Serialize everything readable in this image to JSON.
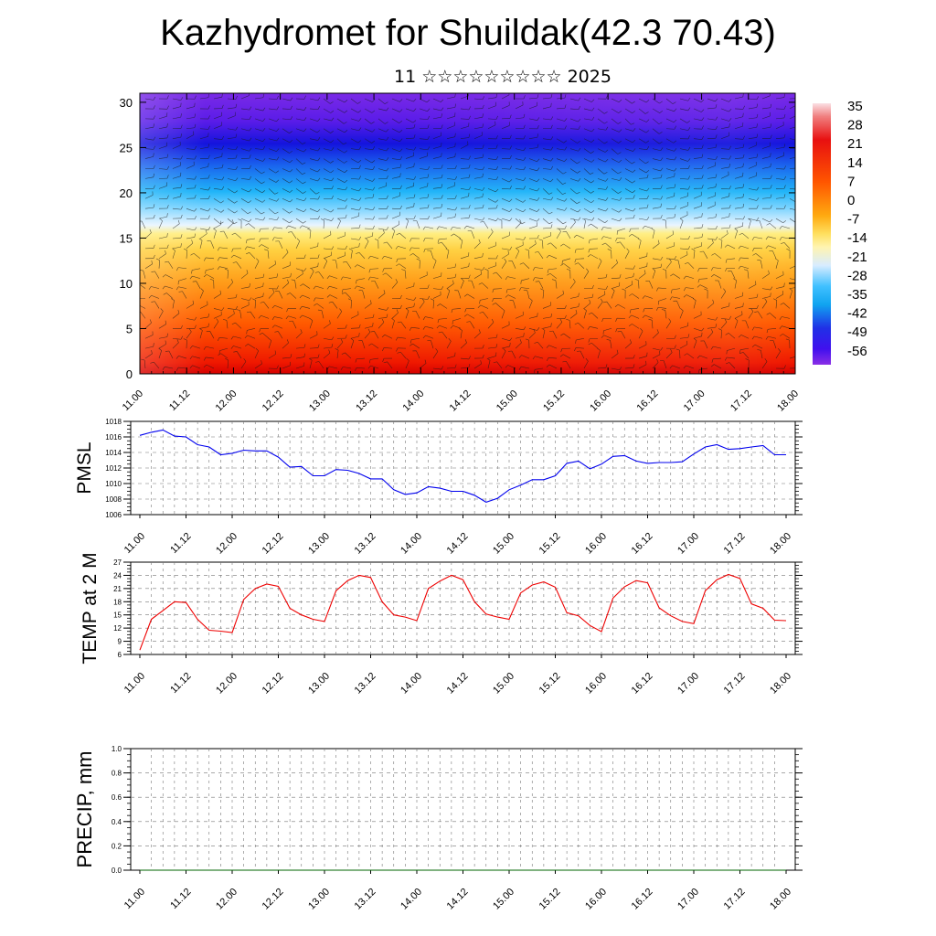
{
  "title": "Kazhydromet for Shuildak(42.3 70.43)",
  "subtitle": "11 ☆☆☆☆☆☆☆☆☆ 2025",
  "chart_data": [
    {
      "type": "heatmap",
      "ylim": [
        0,
        31
      ],
      "yticks": [
        0,
        5,
        10,
        15,
        20,
        25,
        30
      ],
      "xticks": [
        "11.00",
        "11.12",
        "12.00",
        "12.12",
        "13.00",
        "13.12",
        "14.00",
        "14.12",
        "15.00",
        "15.12",
        "16.00",
        "16.12",
        "17.00",
        "17.12",
        "18.00"
      ],
      "colorbar": {
        "labels": [
          "35",
          "28",
          "21",
          "14",
          "7",
          "0",
          "-7",
          "-14",
          "-21",
          "-28",
          "-35",
          "-42",
          "-49",
          "-56"
        ],
        "range": [
          -63,
          42
        ]
      }
    },
    {
      "type": "line",
      "ylabel": "PMSL",
      "ylim": [
        1006,
        1018
      ],
      "yticks": [
        1006,
        1008,
        1010,
        1012,
        1014,
        1016,
        1018
      ],
      "xticks": [
        "11.00",
        "11.12",
        "12.00",
        "12.12",
        "13.00",
        "13.12",
        "14.00",
        "14.12",
        "15.00",
        "15.12",
        "16.00",
        "16.12",
        "17.00",
        "17.12",
        "18.00"
      ],
      "color": "#0000ee",
      "values": [
        1016.2,
        1016.6,
        1016.9,
        1016.1,
        1016.0,
        1015.0,
        1014.7,
        1013.7,
        1013.9,
        1014.3,
        1014.2,
        1014.2,
        1013.4,
        1012.1,
        1012.2,
        1011.0,
        1011.0,
        1011.8,
        1011.7,
        1011.3,
        1010.6,
        1010.6,
        1009.2,
        1008.6,
        1008.8,
        1009.6,
        1009.4,
        1009.0,
        1009.0,
        1008.5,
        1007.6,
        1008.1,
        1009.2,
        1009.8,
        1010.5,
        1010.5,
        1011.0,
        1012.6,
        1012.9,
        1011.9,
        1012.5,
        1013.5,
        1013.6,
        1012.9,
        1012.6,
        1012.7,
        1012.7,
        1012.8,
        1013.8,
        1014.7,
        1015.0,
        1014.4,
        1014.5,
        1014.7,
        1014.9,
        1013.7,
        1013.7
      ]
    },
    {
      "type": "line",
      "ylabel": "TEMP at 2 M",
      "ylim": [
        6,
        27
      ],
      "yticks": [
        6,
        9,
        12,
        15,
        18,
        21,
        24,
        27
      ],
      "xticks": [
        "11.00",
        "11.12",
        "12.00",
        "12.12",
        "13.00",
        "13.12",
        "14.00",
        "14.12",
        "15.00",
        "15.12",
        "16.00",
        "16.12",
        "17.00",
        "17.12",
        "18.00"
      ],
      "color": "#ee0000",
      "values": [
        7.0,
        14.0,
        16.0,
        18.0,
        17.8,
        14.0,
        11.5,
        11.3,
        11.0,
        18.5,
        21.0,
        22.0,
        21.5,
        16.5,
        15.0,
        14.0,
        13.5,
        20.5,
        22.8,
        24.0,
        23.5,
        18.0,
        15.0,
        14.5,
        13.7,
        21.0,
        22.7,
        24.0,
        23.0,
        18.0,
        15.2,
        14.5,
        14.0,
        20.0,
        21.8,
        22.5,
        21.3,
        15.5,
        14.8,
        12.6,
        11.2,
        18.8,
        21.4,
        22.8,
        22.3,
        16.6,
        14.8,
        13.5,
        13.0,
        20.5,
        23.0,
        24.2,
        23.3,
        17.5,
        16.5,
        13.8,
        13.7
      ]
    },
    {
      "type": "line",
      "ylabel": "PRECIP, mm",
      "ylim": [
        0,
        1
      ],
      "yticks": [
        "0.0",
        "0.2",
        "0.4",
        "0.6",
        "0.8",
        "1.0"
      ],
      "xticks": [
        "11.00",
        "11.12",
        "12.00",
        "12.12",
        "13.00",
        "13.12",
        "14.00",
        "14.12",
        "15.00",
        "15.12",
        "16.00",
        "16.12",
        "17.00",
        "17.12",
        "18.00"
      ],
      "color": "#006400",
      "values": [
        0,
        0,
        0,
        0,
        0,
        0,
        0,
        0,
        0,
        0,
        0,
        0,
        0,
        0,
        0,
        0,
        0,
        0,
        0,
        0,
        0,
        0,
        0,
        0,
        0,
        0,
        0,
        0,
        0,
        0,
        0,
        0,
        0,
        0,
        0,
        0,
        0,
        0,
        0,
        0,
        0,
        0,
        0,
        0,
        0,
        0,
        0,
        0,
        0,
        0,
        0,
        0,
        0,
        0,
        0,
        0,
        0
      ]
    }
  ]
}
